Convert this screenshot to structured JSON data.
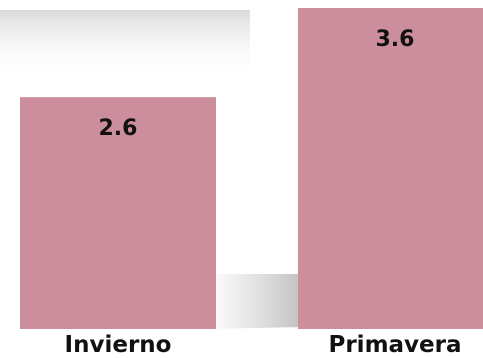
{
  "chart_data": {
    "type": "bar",
    "categories": [
      "Invierno",
      "Primavera"
    ],
    "values": [
      2.6,
      3.6
    ],
    "data_labels": [
      "2.6",
      "3.6"
    ],
    "title": "",
    "xlabel": "",
    "ylabel": "",
    "ylim": [
      0,
      3.6
    ],
    "grid": false,
    "legend": "none",
    "bar_color": "#cc8e9c",
    "shadow_color": "#c8c8c8"
  }
}
